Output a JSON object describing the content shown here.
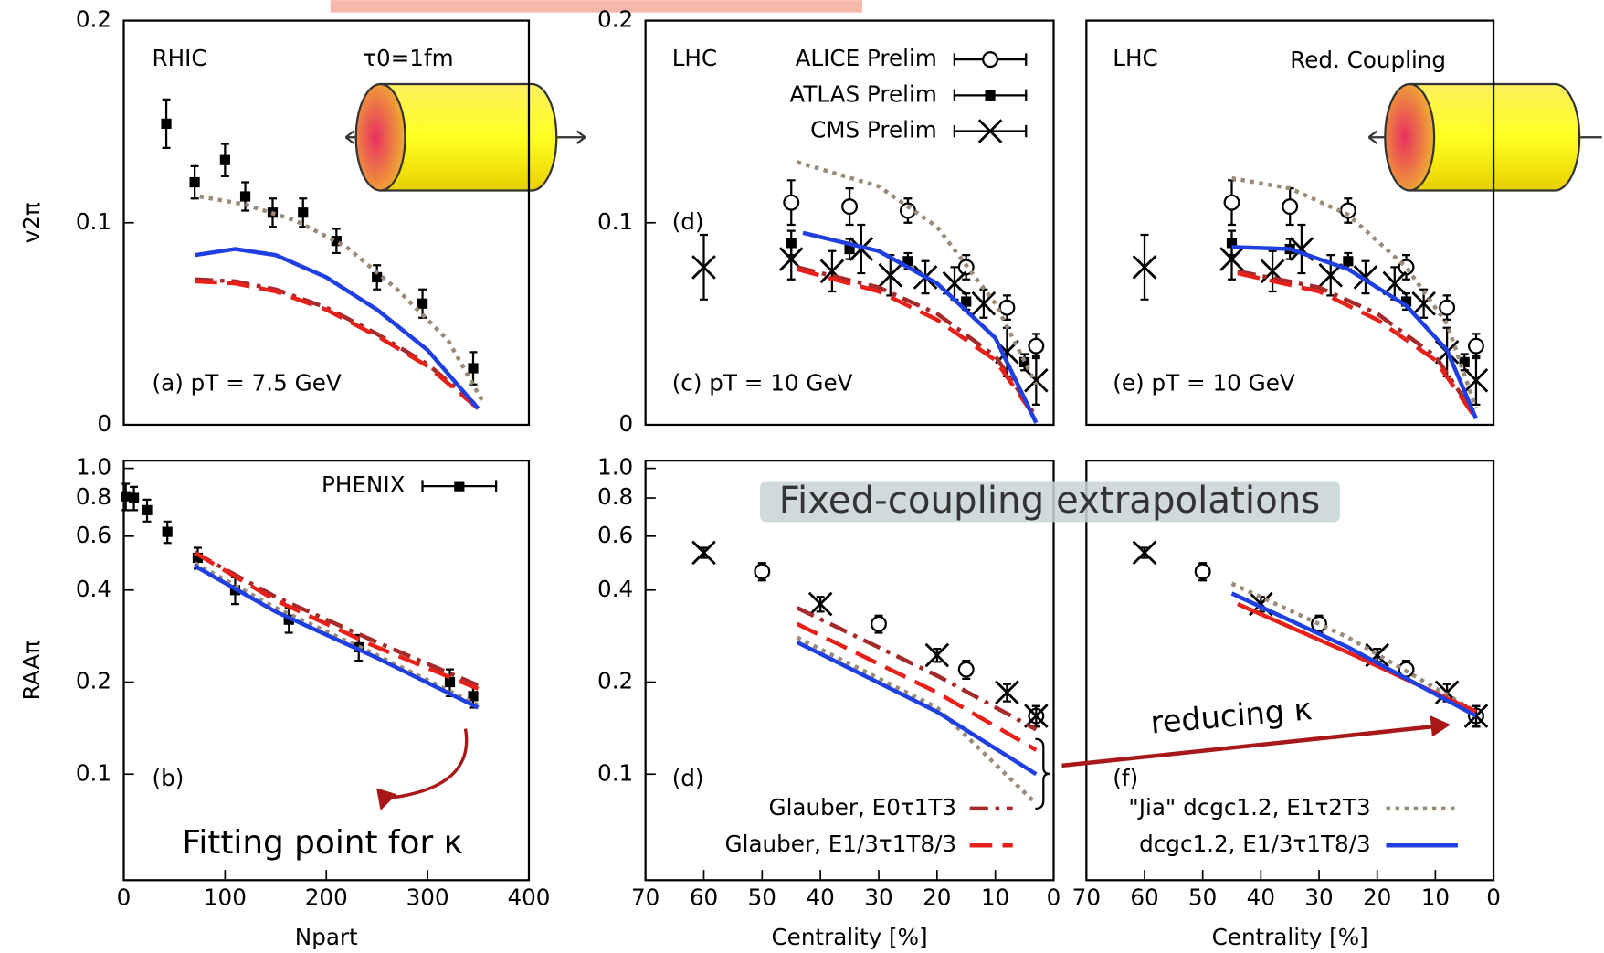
{
  "chart_data": [
    {
      "type": "line",
      "xlim": [
        0,
        400
      ],
      "ylim": [
        0,
        0.2
      ],
      "yticks": [
        0,
        0.1,
        0.2
      ],
      "ylabel": "v2π",
      "annotations": [
        "RHIC",
        "τ0=1fm",
        "(a) pT = 7.5 GeV"
      ],
      "series": [
        {
          "color": "#000000",
          "marker": "square",
          "x": [
            42,
            70,
            100,
            120,
            147,
            177,
            210,
            250,
            295,
            345
          ],
          "values": [
            0.149,
            0.12,
            0.131,
            0.113,
            0.105,
            0.105,
            0.091,
            0.073,
            0.06,
            0.028
          ],
          "errors": [
            0.012,
            0.008,
            0.008,
            0.007,
            0.007,
            0.007,
            0.006,
            0.006,
            0.007,
            0.008
          ]
        },
        {
          "color": "#9a8a78",
          "style": "dotted",
          "x": [
            75,
            120,
            170,
            220,
            270,
            320,
            355
          ],
          "values": [
            0.113,
            0.109,
            0.101,
            0.088,
            0.067,
            0.042,
            0.011
          ]
        },
        {
          "color": "#a52a2a",
          "style": "dashdot",
          "x": [
            70,
            110,
            150,
            200,
            250,
            300,
            350
          ],
          "values": [
            0.072,
            0.071,
            0.067,
            0.058,
            0.045,
            0.03,
            0.009
          ]
        },
        {
          "color": "#e8201a",
          "style": "dashed",
          "x": [
            70,
            110,
            150,
            200,
            250,
            300,
            350
          ],
          "values": [
            0.071,
            0.07,
            0.066,
            0.057,
            0.044,
            0.029,
            0.008
          ]
        },
        {
          "color": "#1f3fe0",
          "style": "solid",
          "x": [
            70,
            110,
            150,
            200,
            250,
            300,
            350
          ],
          "values": [
            0.084,
            0.087,
            0.084,
            0.073,
            0.057,
            0.037,
            0.008
          ]
        }
      ]
    },
    {
      "type": "line",
      "xlim": [
        70,
        0
      ],
      "ylim": [
        0,
        0.2
      ],
      "yticks": [
        0,
        0.1,
        0.2
      ],
      "legend": "upper right",
      "annotations": [
        "LHC",
        "(d)",
        "(c) pT = 10 GeV"
      ],
      "series": [
        {
          "name": "ALICE Prelim",
          "color": "#000000",
          "marker": "circle",
          "x": [
            45,
            35,
            25,
            15,
            8,
            3
          ],
          "values": [
            0.11,
            0.108,
            0.106,
            0.078,
            0.058,
            0.039
          ],
          "errors": [
            0.011,
            0.009,
            0.006,
            0.006,
            0.006,
            0.006
          ]
        },
        {
          "name": "ATLAS Prelim",
          "color": "#000000",
          "marker": "square",
          "x": [
            45,
            35,
            25,
            15,
            5
          ],
          "values": [
            0.09,
            0.087,
            0.081,
            0.061,
            0.031
          ],
          "errors": [
            0.006,
            0.005,
            0.004,
            0.004,
            0.004
          ]
        },
        {
          "name": "CMS Prelim",
          "color": "#000000",
          "marker": "cross",
          "x": [
            60,
            45,
            38,
            33,
            28,
            22,
            17,
            12,
            8,
            3
          ],
          "values": [
            0.078,
            0.082,
            0.076,
            0.087,
            0.074,
            0.073,
            0.07,
            0.06,
            0.036,
            0.022
          ],
          "errors": [
            0.016,
            0.01,
            0.01,
            0.012,
            0.01,
            0.008,
            0.008,
            0.007,
            0.012,
            0.012
          ]
        },
        {
          "color": "#9a8a78",
          "style": "dotted",
          "x": [
            44,
            30,
            20,
            10,
            3
          ],
          "values": [
            0.13,
            0.118,
            0.098,
            0.06,
            0.02
          ]
        },
        {
          "color": "#a52a2a",
          "style": "dashdot",
          "x": [
            44,
            30,
            20,
            10,
            3
          ],
          "values": [
            0.078,
            0.068,
            0.055,
            0.034,
            0.004
          ]
        },
        {
          "color": "#e8201a",
          "style": "dashed",
          "x": [
            44,
            30,
            20,
            10,
            3
          ],
          "values": [
            0.077,
            0.066,
            0.052,
            0.032,
            0.003
          ]
        },
        {
          "color": "#1f3fe0",
          "style": "solid",
          "x": [
            43,
            30,
            20,
            10,
            3
          ],
          "values": [
            0.095,
            0.086,
            0.07,
            0.043,
            0.001
          ]
        }
      ]
    },
    {
      "type": "line",
      "xlim": [
        70,
        0
      ],
      "ylim": [
        0,
        0.2
      ],
      "annotations": [
        "LHC",
        "Red. Coupling",
        "(e) pT = 10 GeV"
      ],
      "series": [
        {
          "color": "#000000",
          "marker": "circle",
          "x": [
            45,
            35,
            25,
            15,
            8,
            3
          ],
          "values": [
            0.11,
            0.108,
            0.106,
            0.078,
            0.058,
            0.039
          ],
          "errors": [
            0.011,
            0.009,
            0.006,
            0.006,
            0.006,
            0.006
          ]
        },
        {
          "color": "#000000",
          "marker": "square",
          "x": [
            45,
            35,
            25,
            15,
            5
          ],
          "values": [
            0.09,
            0.087,
            0.081,
            0.061,
            0.031
          ],
          "errors": [
            0.006,
            0.005,
            0.004,
            0.004,
            0.004
          ]
        },
        {
          "color": "#000000",
          "marker": "cross",
          "x": [
            60,
            45,
            38,
            33,
            28,
            22,
            17,
            12,
            8,
            3
          ],
          "values": [
            0.078,
            0.082,
            0.076,
            0.087,
            0.074,
            0.073,
            0.07,
            0.06,
            0.036,
            0.022
          ],
          "errors": [
            0.016,
            0.01,
            0.01,
            0.012,
            0.01,
            0.008,
            0.008,
            0.007,
            0.012,
            0.012
          ]
        },
        {
          "color": "#9a8a78",
          "style": "dotted",
          "x": [
            45,
            35,
            25,
            15,
            8,
            3
          ],
          "values": [
            0.122,
            0.117,
            0.104,
            0.078,
            0.05,
            0.008
          ]
        },
        {
          "color": "#a52a2a",
          "style": "dashdot",
          "x": [
            44,
            30,
            20,
            10,
            3
          ],
          "values": [
            0.076,
            0.068,
            0.055,
            0.034,
            0.004
          ]
        },
        {
          "color": "#e8201a",
          "style": "dashed",
          "x": [
            44,
            30,
            20,
            10,
            3
          ],
          "values": [
            0.075,
            0.066,
            0.052,
            0.032,
            0.003
          ]
        },
        {
          "color": "#1f3fe0",
          "style": "solid",
          "x": [
            45,
            35,
            25,
            15,
            8,
            3
          ],
          "values": [
            0.088,
            0.087,
            0.077,
            0.059,
            0.037,
            0.003
          ]
        }
      ]
    },
    {
      "type": "line",
      "log": true,
      "xlim": [
        0,
        400
      ],
      "ylim": [
        0.045,
        1.06
      ],
      "xticks": [
        0,
        100,
        200,
        300,
        400
      ],
      "yticks": [
        0.1,
        0.2,
        0.4,
        0.6,
        0.8,
        {
          "value": 1,
          "label": "1.0"
        }
      ],
      "ylabel": "RAAπ",
      "xlabel": "Npart",
      "legend": "upper right",
      "annotations": [
        "(b)"
      ],
      "series": [
        {
          "name": "PHENIX",
          "color": "#000000",
          "marker": "square",
          "x": [
            2,
            10,
            23,
            43,
            73,
            110,
            163,
            232,
            322,
            345
          ],
          "values": [
            0.81,
            0.8,
            0.73,
            0.62,
            0.51,
            0.4,
            0.32,
            0.26,
            0.2,
            0.18
          ],
          "errors": [
            0.08,
            0.07,
            0.06,
            0.05,
            0.04,
            0.04,
            0.03,
            0.025,
            0.02,
            0.015
          ]
        },
        {
          "color": "#9a8a78",
          "style": "dotted",
          "x": [
            70,
            150,
            250,
            350
          ],
          "values": [
            0.49,
            0.35,
            0.245,
            0.168
          ]
        },
        {
          "color": "#a52a2a",
          "style": "dashdot",
          "x": [
            70,
            150,
            250,
            350
          ],
          "values": [
            0.53,
            0.38,
            0.27,
            0.195
          ]
        },
        {
          "color": "#e8201a",
          "style": "dashed",
          "x": [
            70,
            150,
            250,
            350
          ],
          "values": [
            0.53,
            0.37,
            0.26,
            0.19
          ]
        },
        {
          "color": "#1f3fe0",
          "style": "solid",
          "x": [
            70,
            150,
            250,
            350
          ],
          "values": [
            0.48,
            0.34,
            0.24,
            0.165
          ]
        }
      ]
    },
    {
      "type": "line",
      "log": true,
      "xlim": [
        70,
        0
      ],
      "ylim": [
        0.045,
        1.06
      ],
      "xticks": [
        70,
        60,
        50,
        40,
        30,
        20,
        10,
        0
      ],
      "yticks": [
        0.1,
        0.2,
        0.4,
        0.6,
        0.8,
        {
          "value": 1,
          "label": "1.0"
        }
      ],
      "xlabel": "Centrality [%]",
      "legend": "lower right",
      "annotations": [
        "(d)"
      ],
      "series": [
        {
          "color": "#000000",
          "marker": "circle",
          "x": [
            50,
            30,
            15,
            3
          ],
          "values": [
            0.46,
            0.31,
            0.22,
            0.155
          ],
          "errors": [
            0.03,
            0.02,
            0.015,
            0.012
          ]
        },
        {
          "color": "#000000",
          "marker": "cross",
          "x": [
            60,
            40,
            20,
            8,
            3
          ],
          "values": [
            0.53,
            0.36,
            0.245,
            0.185,
            0.155
          ],
          "errors": [
            0.02,
            0.02,
            0.012,
            0.012,
            0.012
          ]
        },
        {
          "color": "#9a8a78",
          "style": "dotted",
          "x": [
            44,
            20,
            3
          ],
          "values": [
            0.28,
            0.165,
            0.08
          ]
        },
        {
          "name": "Glauber, E0τ1T3",
          "color": "#a52a2a",
          "style": "dashdot",
          "x": [
            44,
            20,
            3
          ],
          "values": [
            0.35,
            0.21,
            0.14
          ]
        },
        {
          "name": "Glauber, E1/3τ1T8/3",
          "color": "#e8201a",
          "style": "dashed",
          "x": [
            44,
            20,
            3
          ],
          "values": [
            0.31,
            0.185,
            0.12
          ]
        },
        {
          "color": "#1f3fe0",
          "style": "solid",
          "x": [
            44,
            20,
            3
          ],
          "values": [
            0.27,
            0.16,
            0.1
          ]
        }
      ]
    },
    {
      "type": "line",
      "log": true,
      "xlim": [
        70,
        0
      ],
      "ylim": [
        0.045,
        1.06
      ],
      "xticks": [
        70,
        60,
        50,
        40,
        30,
        20,
        10,
        0
      ],
      "xlabel": "Centrality [%]",
      "legend": "lower right",
      "annotations": [
        "(f)"
      ],
      "series": [
        {
          "color": "#000000",
          "marker": "circle",
          "x": [
            50,
            30,
            15,
            3
          ],
          "values": [
            0.46,
            0.31,
            0.22,
            0.155
          ],
          "errors": [
            0.03,
            0.02,
            0.015,
            0.012
          ]
        },
        {
          "color": "#000000",
          "marker": "cross",
          "x": [
            60,
            40,
            20,
            8,
            3
          ],
          "values": [
            0.53,
            0.36,
            0.245,
            0.185,
            0.155
          ],
          "errors": [
            0.02,
            0.02,
            0.012,
            0.012,
            0.012
          ]
        },
        {
          "name": "\"Jia\" dcgc1.2, E1τ2T3",
          "color": "#9a8a78",
          "style": "dotted",
          "x": [
            45,
            25,
            3
          ],
          "values": [
            0.42,
            0.28,
            0.16
          ]
        },
        {
          "color": "#e8201a",
          "style": "solid",
          "x": [
            44,
            25,
            3
          ],
          "values": [
            0.36,
            0.25,
            0.16
          ]
        },
        {
          "name": "dcgc1.2, E1/3τ1T8/3",
          "color": "#1f3fe0",
          "style": "solid",
          "x": [
            45,
            25,
            3
          ],
          "values": [
            0.39,
            0.26,
            0.155
          ]
        }
      ]
    }
  ],
  "overlays": {
    "fixed": "Fixed-coupling extrapolations",
    "reducing": "reducing κ",
    "fitting": "Fitting point for κ"
  }
}
